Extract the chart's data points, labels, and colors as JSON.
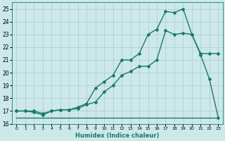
{
  "xlabel": "Humidex (Indice chaleur)",
  "background_color": "#cce8e8",
  "grid_color": "#aacccc",
  "line_color": "#1a7a6a",
  "xlim": [
    -0.5,
    23.5
  ],
  "ylim": [
    16,
    25.5
  ],
  "yticks": [
    16,
    17,
    18,
    19,
    20,
    21,
    22,
    23,
    24,
    25
  ],
  "xticks": [
    0,
    1,
    2,
    3,
    4,
    5,
    6,
    7,
    8,
    9,
    10,
    11,
    12,
    13,
    14,
    15,
    16,
    17,
    18,
    19,
    20,
    21,
    22,
    23
  ],
  "line1_x": [
    0,
    1,
    2,
    3,
    4,
    5,
    6,
    7,
    8,
    9,
    10,
    11,
    12,
    13,
    14,
    15,
    16,
    17,
    18,
    19,
    20,
    21,
    22,
    23
  ],
  "line1_y": [
    16.5,
    16.5,
    16.5,
    16.5,
    16.5,
    16.5,
    16.5,
    16.5,
    16.5,
    16.5,
    16.5,
    16.5,
    16.5,
    16.5,
    16.5,
    16.5,
    16.5,
    16.5,
    16.5,
    16.5,
    16.5,
    16.5,
    16.5,
    16.5
  ],
  "line2_x": [
    0,
    1,
    2,
    3,
    4,
    5,
    6,
    7,
    8,
    9,
    10,
    11,
    12,
    13,
    14,
    15,
    16,
    17,
    18,
    19,
    20,
    21,
    22,
    23
  ],
  "line2_y": [
    17.0,
    17.0,
    16.9,
    16.7,
    17.0,
    17.1,
    17.1,
    17.3,
    17.6,
    18.8,
    19.3,
    19.8,
    21.0,
    21.0,
    21.5,
    23.0,
    23.4,
    24.8,
    24.7,
    25.0,
    23.0,
    21.5,
    21.5,
    21.5
  ],
  "line3_x": [
    0,
    1,
    2,
    3,
    4,
    5,
    6,
    7,
    8,
    9,
    10,
    11,
    12,
    13,
    14,
    15,
    16,
    17,
    18,
    19,
    20,
    21,
    22,
    23
  ],
  "line3_y": [
    17.0,
    17.0,
    17.0,
    16.8,
    17.0,
    17.1,
    17.1,
    17.2,
    17.5,
    17.7,
    18.5,
    19.0,
    19.8,
    20.1,
    20.5,
    20.5,
    21.0,
    23.3,
    23.0,
    23.1,
    23.0,
    21.4,
    19.5,
    16.5
  ],
  "marker": "D",
  "markersize": 2.0,
  "linewidth": 1.0
}
